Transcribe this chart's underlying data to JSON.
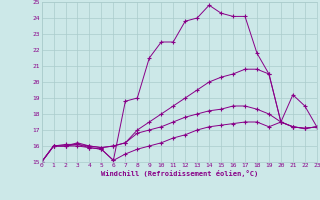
{
  "xlabel": "Windchill (Refroidissement éolien,°C)",
  "bg_color": "#cce8e8",
  "grid_color": "#aacccc",
  "line_color": "#880088",
  "xlim": [
    0,
    23
  ],
  "ylim": [
    15,
    25
  ],
  "xticks": [
    0,
    1,
    2,
    3,
    4,
    5,
    6,
    7,
    8,
    9,
    10,
    11,
    12,
    13,
    14,
    15,
    16,
    17,
    18,
    19,
    20,
    21,
    22,
    23
  ],
  "yticks": [
    15,
    16,
    17,
    18,
    19,
    20,
    21,
    22,
    23,
    24,
    25
  ],
  "lines": [
    {
      "x": [
        0,
        1,
        2,
        3,
        4,
        5,
        6,
        7,
        8,
        9,
        10,
        11,
        12,
        13,
        14,
        15,
        16,
        17,
        18,
        19,
        20,
        21,
        22,
        23
      ],
      "y": [
        15.0,
        16.0,
        16.1,
        16.1,
        15.9,
        15.8,
        15.1,
        18.8,
        19.0,
        21.5,
        22.5,
        22.5,
        23.8,
        24.0,
        24.8,
        24.3,
        24.1,
        24.1,
        21.8,
        20.5,
        17.5,
        19.2,
        18.5,
        17.2
      ]
    },
    {
      "x": [
        0,
        1,
        2,
        3,
        4,
        5,
        6,
        7,
        8,
        9,
        10,
        11,
        12,
        13,
        14,
        15,
        16,
        17,
        18,
        19,
        20,
        21,
        22,
        23
      ],
      "y": [
        15.0,
        16.0,
        16.0,
        16.2,
        16.0,
        15.9,
        16.0,
        16.2,
        17.0,
        17.5,
        18.0,
        18.5,
        19.0,
        19.5,
        20.0,
        20.3,
        20.5,
        20.8,
        20.8,
        20.5,
        17.5,
        17.2,
        17.1,
        17.2
      ]
    },
    {
      "x": [
        0,
        1,
        2,
        3,
        4,
        5,
        6,
        7,
        8,
        9,
        10,
        11,
        12,
        13,
        14,
        15,
        16,
        17,
        18,
        19,
        20,
        21,
        22,
        23
      ],
      "y": [
        15.0,
        16.0,
        16.0,
        16.1,
        16.0,
        15.9,
        16.0,
        16.2,
        16.8,
        17.0,
        17.2,
        17.5,
        17.8,
        18.0,
        18.2,
        18.3,
        18.5,
        18.5,
        18.3,
        18.0,
        17.5,
        17.2,
        17.1,
        17.2
      ]
    },
    {
      "x": [
        0,
        1,
        2,
        3,
        4,
        5,
        6,
        7,
        8,
        9,
        10,
        11,
        12,
        13,
        14,
        15,
        16,
        17,
        18,
        19,
        20,
        21,
        22,
        23
      ],
      "y": [
        15.0,
        16.0,
        16.0,
        16.0,
        15.9,
        15.8,
        15.1,
        15.5,
        15.8,
        16.0,
        16.2,
        16.5,
        16.7,
        17.0,
        17.2,
        17.3,
        17.4,
        17.5,
        17.5,
        17.2,
        17.5,
        17.2,
        17.1,
        17.2
      ]
    }
  ]
}
